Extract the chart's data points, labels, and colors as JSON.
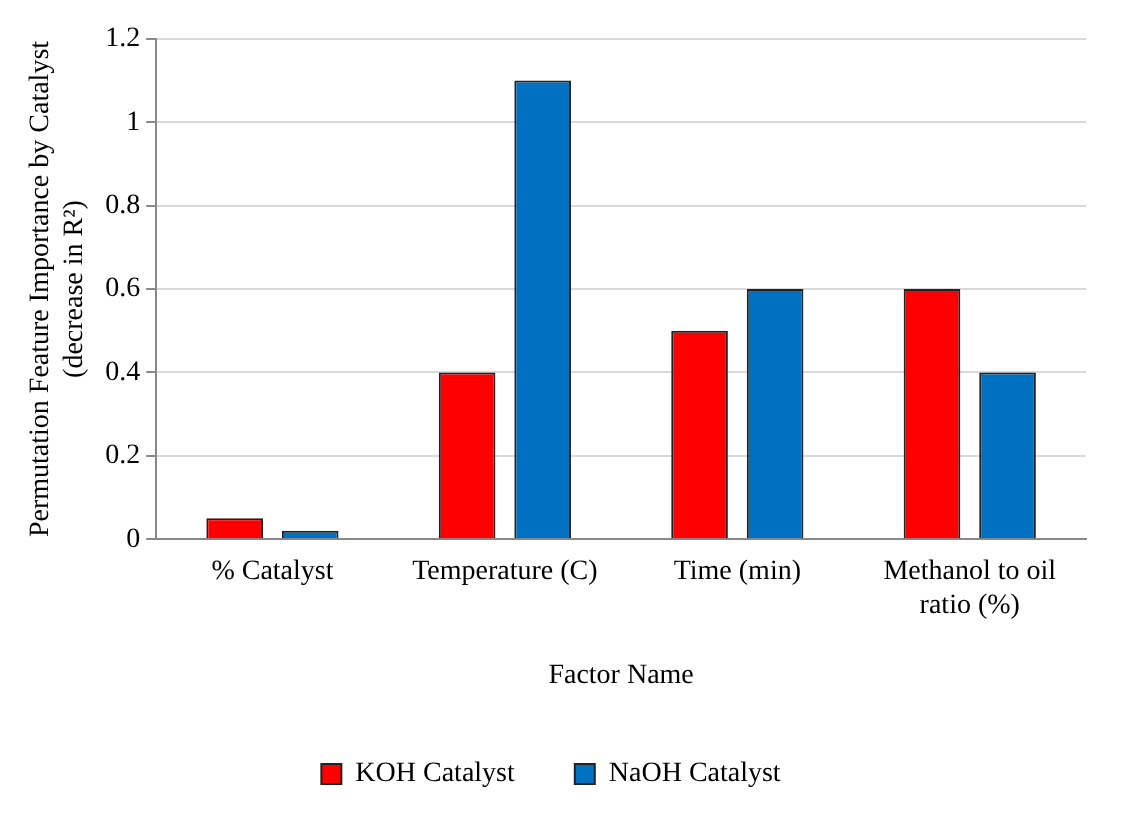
{
  "chart_data": {
    "type": "bar",
    "xlabel": "Factor Name",
    "ylabel": "Permutation Feature Importance by Catalyst (decrease in R²)",
    "categories": [
      "% Catalyst",
      "Temperature (C)",
      "Time (min)",
      "Methanol to oil ratio (%)"
    ],
    "series": [
      {
        "name": "KOH Catalyst",
        "color": "#ff0000",
        "values": [
          0.05,
          0.4,
          0.5,
          0.6
        ]
      },
      {
        "name": "NaOH Catalyst",
        "color": "#0070c0",
        "values": [
          0.02,
          1.1,
          0.6,
          0.4
        ]
      }
    ],
    "ylim": [
      0,
      1.2
    ],
    "yticks": [
      0,
      0.2,
      0.4,
      0.6,
      0.8,
      1,
      1.2
    ],
    "grid": "y",
    "legend": "bottom"
  }
}
